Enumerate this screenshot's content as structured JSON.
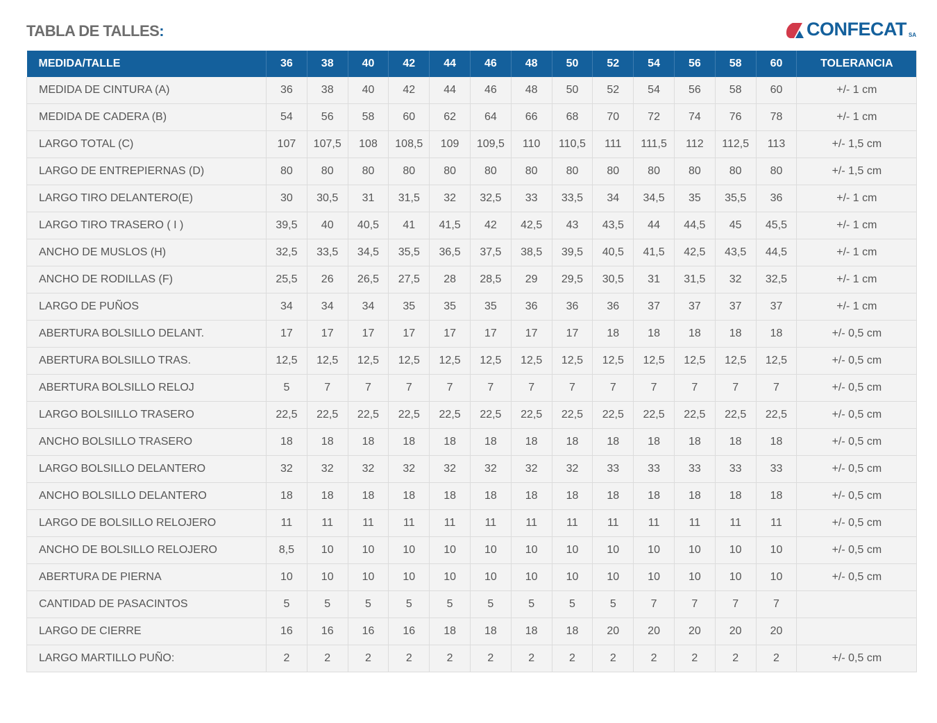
{
  "title": "TABLA DE TALLES",
  "title_colon": ":",
  "logo": {
    "name": "CONFECAT",
    "suffix": "SA",
    "accent": "#d23a4a",
    "brand": "#14609c"
  },
  "table": {
    "header_first": "MEDIDA/TALLE",
    "sizes": [
      "36",
      "38",
      "40",
      "42",
      "44",
      "46",
      "48",
      "50",
      "52",
      "54",
      "56",
      "58",
      "60"
    ],
    "header_tolerance": "TOLERANCIA",
    "rows": [
      {
        "label": "MEDIDA DE CINTURA (A)",
        "values": [
          "36",
          "38",
          "40",
          "42",
          "44",
          "46",
          "48",
          "50",
          "52",
          "54",
          "56",
          "58",
          "60"
        ],
        "tolerance": "+/- 1 cm"
      },
      {
        "label": "MEDIDA DE CADERA (B)",
        "values": [
          "54",
          "56",
          "58",
          "60",
          "62",
          "64",
          "66",
          "68",
          "70",
          "72",
          "74",
          "76",
          "78"
        ],
        "tolerance": "+/- 1 cm"
      },
      {
        "label": "LARGO TOTAL (C)",
        "values": [
          "107",
          "107,5",
          "108",
          "108,5",
          "109",
          "109,5",
          "110",
          "110,5",
          "111",
          "111,5",
          "112",
          "112,5",
          "113"
        ],
        "tolerance": "+/- 1,5 cm"
      },
      {
        "label": "LARGO DE ENTREPIERNAS (D)",
        "values": [
          "80",
          "80",
          "80",
          "80",
          "80",
          "80",
          "80",
          "80",
          "80",
          "80",
          "80",
          "80",
          "80"
        ],
        "tolerance": "+/- 1,5 cm"
      },
      {
        "label": "LARGO TIRO DELANTERO(E)",
        "values": [
          "30",
          "30,5",
          "31",
          "31,5",
          "32",
          "32,5",
          "33",
          "33,5",
          "34",
          "34,5",
          "35",
          "35,5",
          "36"
        ],
        "tolerance": "+/- 1 cm"
      },
      {
        "label": "LARGO TIRO TRASERO ( I )",
        "values": [
          "39,5",
          "40",
          "40,5",
          "41",
          "41,5",
          "42",
          "42,5",
          "43",
          "43,5",
          "44",
          "44,5",
          "45",
          "45,5"
        ],
        "tolerance": "+/- 1 cm"
      },
      {
        "label": "ANCHO DE MUSLOS (H)",
        "values": [
          "32,5",
          "33,5",
          "34,5",
          "35,5",
          "36,5",
          "37,5",
          "38,5",
          "39,5",
          "40,5",
          "41,5",
          "42,5",
          "43,5",
          "44,5"
        ],
        "tolerance": "+/- 1 cm"
      },
      {
        "label": "ANCHO DE RODILLAS (F)",
        "values": [
          "25,5",
          "26",
          "26,5",
          "27,5",
          "28",
          "28,5",
          "29",
          "29,5",
          "30,5",
          "31",
          "31,5",
          "32",
          "32,5"
        ],
        "tolerance": "+/- 1 cm"
      },
      {
        "label": "LARGO DE PUÑOS",
        "values": [
          "34",
          "34",
          "34",
          "35",
          "35",
          "35",
          "36",
          "36",
          "36",
          "37",
          "37",
          "37",
          "37"
        ],
        "tolerance": "+/- 1 cm"
      },
      {
        "label": "ABERTURA BOLSILLO DELANT.",
        "values": [
          "17",
          "17",
          "17",
          "17",
          "17",
          "17",
          "17",
          "17",
          "18",
          "18",
          "18",
          "18",
          "18"
        ],
        "tolerance": "+/- 0,5 cm"
      },
      {
        "label": "ABERTURA BOLSILLO TRAS.",
        "values": [
          "12,5",
          "12,5",
          "12,5",
          "12,5",
          "12,5",
          "12,5",
          "12,5",
          "12,5",
          "12,5",
          "12,5",
          "12,5",
          "12,5",
          "12,5"
        ],
        "tolerance": "+/- 0,5 cm"
      },
      {
        "label": "ABERTURA BOLSILLO RELOJ",
        "values": [
          "5",
          "7",
          "7",
          "7",
          "7",
          "7",
          "7",
          "7",
          "7",
          "7",
          "7",
          "7",
          "7"
        ],
        "tolerance": "+/- 0,5 cm"
      },
      {
        "label": "LARGO BOLSIILLO TRASERO",
        "values": [
          "22,5",
          "22,5",
          "22,5",
          "22,5",
          "22,5",
          "22,5",
          "22,5",
          "22,5",
          "22,5",
          "22,5",
          "22,5",
          "22,5",
          "22,5"
        ],
        "tolerance": "+/- 0,5 cm"
      },
      {
        "label": "ANCHO BOLSILLO TRASERO",
        "values": [
          "18",
          "18",
          "18",
          "18",
          "18",
          "18",
          "18",
          "18",
          "18",
          "18",
          "18",
          "18",
          "18"
        ],
        "tolerance": "+/- 0,5 cm"
      },
      {
        "label": "LARGO BOLSILLO DELANTERO",
        "values": [
          "32",
          "32",
          "32",
          "32",
          "32",
          "32",
          "32",
          "32",
          "33",
          "33",
          "33",
          "33",
          "33"
        ],
        "tolerance": "+/- 0,5 cm"
      },
      {
        "label": "ANCHO BOLSILLO DELANTERO",
        "values": [
          "18",
          "18",
          "18",
          "18",
          "18",
          "18",
          "18",
          "18",
          "18",
          "18",
          "18",
          "18",
          "18"
        ],
        "tolerance": "+/- 0,5 cm"
      },
      {
        "label": "LARGO DE BOLSILLO RELOJERO",
        "values": [
          "11",
          "11",
          "11",
          "11",
          "11",
          "11",
          "11",
          "11",
          "11",
          "11",
          "11",
          "11",
          "11"
        ],
        "tolerance": "+/- 0,5 cm"
      },
      {
        "label": "ANCHO DE BOLSILLO RELOJERO",
        "values": [
          "8,5",
          "10",
          "10",
          "10",
          "10",
          "10",
          "10",
          "10",
          "10",
          "10",
          "10",
          "10",
          "10"
        ],
        "tolerance": "+/- 0,5 cm"
      },
      {
        "label": "ABERTURA DE PIERNA",
        "values": [
          "10",
          "10",
          "10",
          "10",
          "10",
          "10",
          "10",
          "10",
          "10",
          "10",
          "10",
          "10",
          "10"
        ],
        "tolerance": "+/- 0,5 cm"
      },
      {
        "label": "CANTIDAD DE PASACINTOS",
        "values": [
          "5",
          "5",
          "5",
          "5",
          "5",
          "5",
          "5",
          "5",
          "5",
          "7",
          "7",
          "7",
          "7"
        ],
        "tolerance": ""
      },
      {
        "label": "LARGO DE CIERRE",
        "values": [
          "16",
          "16",
          "16",
          "16",
          "18",
          "18",
          "18",
          "18",
          "20",
          "20",
          "20",
          "20",
          "20"
        ],
        "tolerance": ""
      },
      {
        "label": "LARGO MARTILLO PUÑO:",
        "values": [
          "2",
          "2",
          "2",
          "2",
          "2",
          "2",
          "2",
          "2",
          "2",
          "2",
          "2",
          "2",
          "2"
        ],
        "tolerance": "+/- 0,5 cm"
      }
    ]
  }
}
